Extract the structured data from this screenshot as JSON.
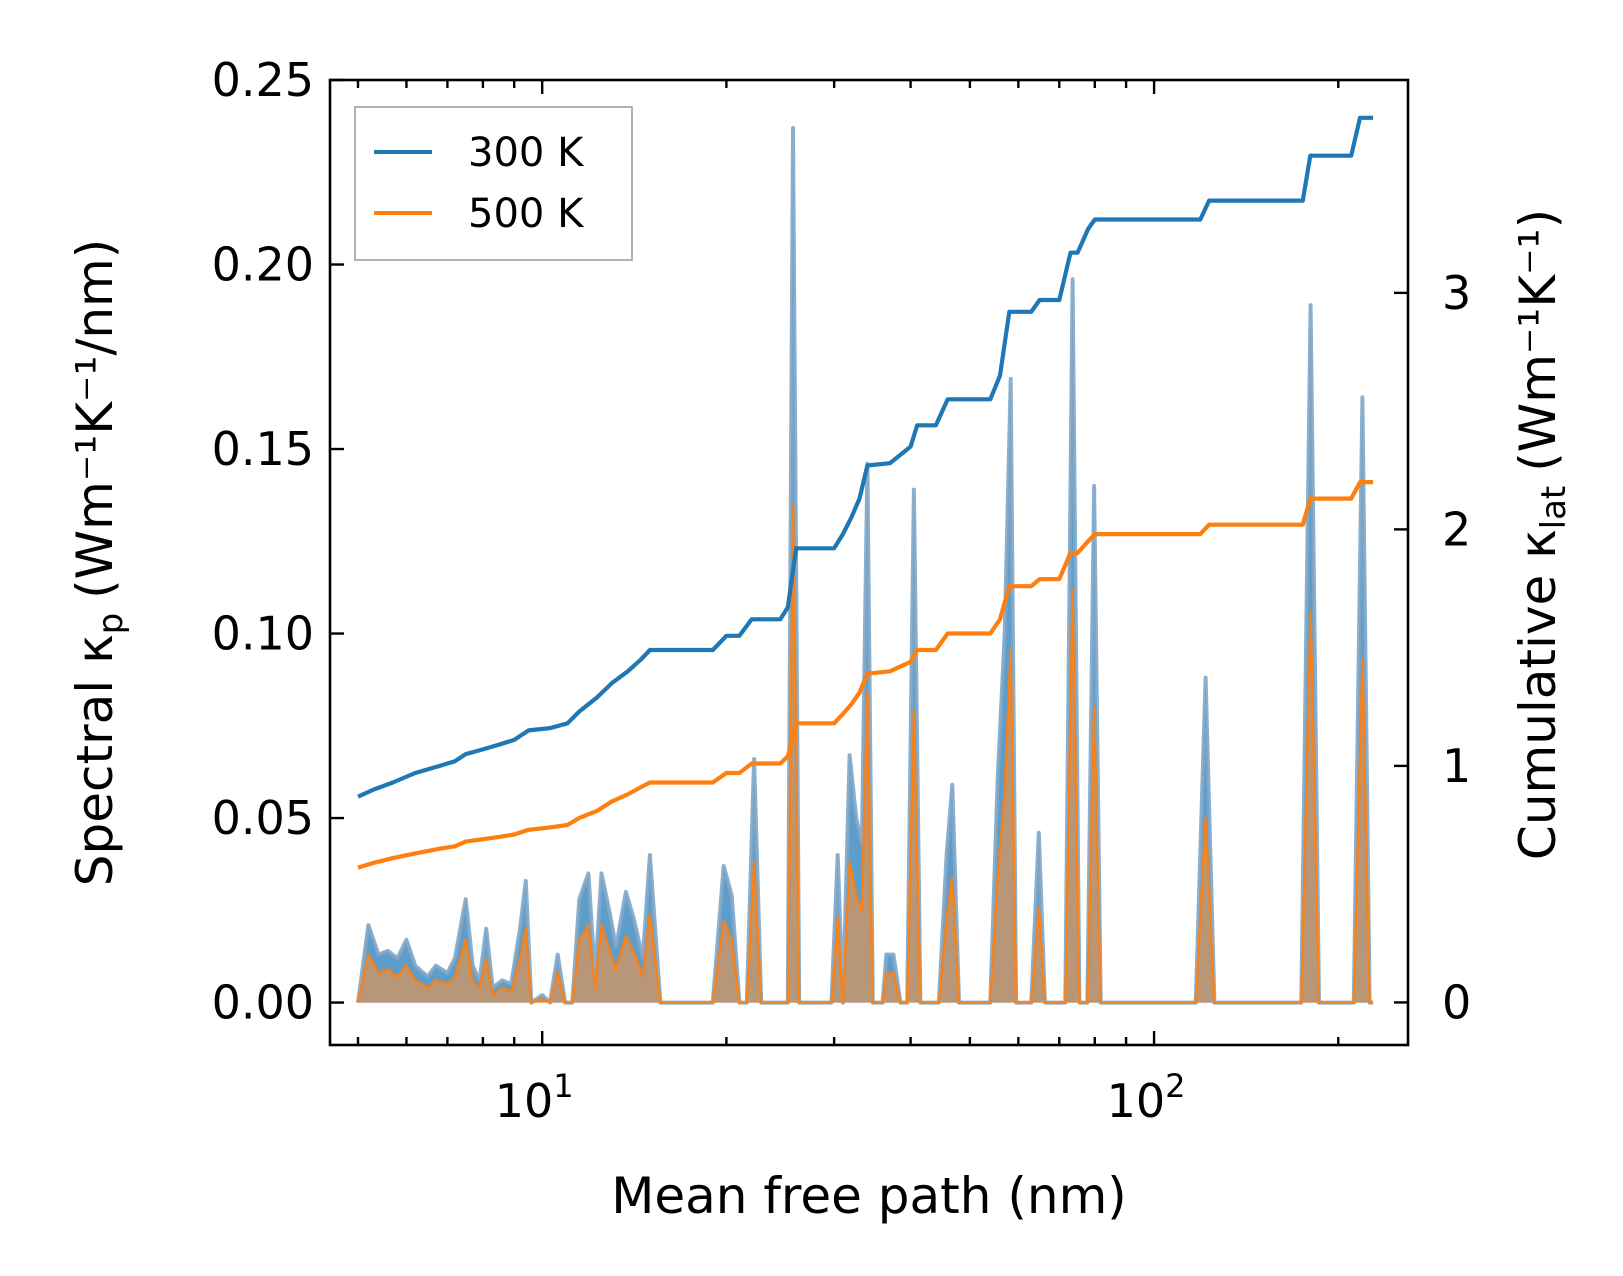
{
  "chart_data": {
    "type": "line",
    "title": "",
    "xlabel": "Mean free path (nm)",
    "ylabel_left": {
      "base": "Spectral κ",
      "sub": "p",
      "unit": "(Wm⁻¹K⁻¹/nm)"
    },
    "ylabel_right": {
      "base": "Cumulative κ",
      "sub": "lat",
      "unit": "(Wm⁻¹K⁻¹)"
    },
    "xscale": "log",
    "xlim": [
      4.5,
      260
    ],
    "ylim_left": [
      -0.0115,
      0.25
    ],
    "ylim_right": [
      -0.18,
      3.9
    ],
    "x_ticks": [
      {
        "value": 10,
        "base": "10",
        "exp": "1"
      },
      {
        "value": 100,
        "base": "10",
        "exp": "2"
      }
    ],
    "y_left_ticks": [
      {
        "value": 0.0,
        "label": "0.00"
      },
      {
        "value": 0.05,
        "label": "0.05"
      },
      {
        "value": 0.1,
        "label": "0.10"
      },
      {
        "value": 0.15,
        "label": "0.15"
      },
      {
        "value": 0.2,
        "label": "0.20"
      },
      {
        "value": 0.25,
        "label": "0.25"
      }
    ],
    "y_right_ticks": [
      {
        "value": 0,
        "label": "0"
      },
      {
        "value": 1,
        "label": "1"
      },
      {
        "value": 2,
        "label": "2"
      },
      {
        "value": 3,
        "label": "3"
      }
    ],
    "legend": {
      "position": "top-left",
      "entries": [
        "300 K",
        "500 K"
      ]
    },
    "series": [
      {
        "name": "300 K",
        "color": "#1f77b4",
        "fill_color": "#1f77b4",
        "cumulative": [
          [
            5.0,
            0.87
          ],
          [
            5.3,
            0.9
          ],
          [
            5.7,
            0.93
          ],
          [
            6.2,
            0.97
          ],
          [
            6.8,
            1.0
          ],
          [
            7.2,
            1.02
          ],
          [
            7.5,
            1.05
          ],
          [
            8.0,
            1.07
          ],
          [
            8.5,
            1.09
          ],
          [
            9.0,
            1.11
          ],
          [
            9.5,
            1.15
          ],
          [
            10.3,
            1.16
          ],
          [
            11.0,
            1.18
          ],
          [
            11.5,
            1.23
          ],
          [
            12.3,
            1.29
          ],
          [
            13.0,
            1.35
          ],
          [
            13.8,
            1.4
          ],
          [
            14.5,
            1.45
          ],
          [
            15.0,
            1.49
          ],
          [
            19.0,
            1.49
          ],
          [
            20.0,
            1.55
          ],
          [
            21.0,
            1.55
          ],
          [
            22.0,
            1.62
          ],
          [
            24.5,
            1.62
          ],
          [
            25.2,
            1.67
          ],
          [
            26.0,
            1.92
          ],
          [
            30.0,
            1.92
          ],
          [
            31.0,
            1.98
          ],
          [
            32.0,
            2.05
          ],
          [
            33.0,
            2.13
          ],
          [
            34.0,
            2.27
          ],
          [
            37.0,
            2.28
          ],
          [
            40.0,
            2.35
          ],
          [
            41.0,
            2.44
          ],
          [
            44.0,
            2.44
          ],
          [
            46.0,
            2.55
          ],
          [
            54.0,
            2.55
          ],
          [
            56.0,
            2.65
          ],
          [
            58.0,
            2.92
          ],
          [
            63.0,
            2.92
          ],
          [
            65.0,
            2.97
          ],
          [
            70.0,
            2.97
          ],
          [
            73.0,
            3.17
          ],
          [
            75.0,
            3.17
          ],
          [
            78.0,
            3.27
          ],
          [
            80.0,
            3.31
          ],
          [
            119.0,
            3.31
          ],
          [
            123.0,
            3.39
          ],
          [
            175.0,
            3.39
          ],
          [
            180.0,
            3.58
          ],
          [
            210.0,
            3.58
          ],
          [
            217.0,
            3.74
          ],
          [
            228.0,
            3.74
          ]
        ],
        "spectral": [
          [
            5.0,
            0.0
          ],
          [
            5.2,
            0.021
          ],
          [
            5.4,
            0.013
          ],
          [
            5.6,
            0.014
          ],
          [
            5.8,
            0.012
          ],
          [
            6.0,
            0.017
          ],
          [
            6.2,
            0.01
          ],
          [
            6.5,
            0.007
          ],
          [
            6.7,
            0.01
          ],
          [
            7.0,
            0.008
          ],
          [
            7.2,
            0.012
          ],
          [
            7.5,
            0.028
          ],
          [
            7.7,
            0.01
          ],
          [
            7.9,
            0.006
          ],
          [
            8.1,
            0.02
          ],
          [
            8.3,
            0.004
          ],
          [
            8.6,
            0.006
          ],
          [
            8.9,
            0.005
          ],
          [
            9.2,
            0.02
          ],
          [
            9.4,
            0.033
          ],
          [
            9.6,
            0.0
          ],
          [
            10.0,
            0.002
          ],
          [
            10.3,
            0.0
          ],
          [
            10.6,
            0.013
          ],
          [
            10.9,
            0.0
          ],
          [
            11.2,
            0.0
          ],
          [
            11.5,
            0.028
          ],
          [
            11.9,
            0.035
          ],
          [
            12.2,
            0.007
          ],
          [
            12.5,
            0.035
          ],
          [
            12.9,
            0.024
          ],
          [
            13.2,
            0.015
          ],
          [
            13.7,
            0.03
          ],
          [
            14.1,
            0.023
          ],
          [
            14.6,
            0.012
          ],
          [
            15.0,
            0.04
          ],
          [
            15.6,
            0.0
          ],
          [
            19.0,
            0.0
          ],
          [
            19.8,
            0.037
          ],
          [
            20.4,
            0.029
          ],
          [
            21.0,
            0.0
          ],
          [
            21.6,
            0.0
          ],
          [
            22.2,
            0.066
          ],
          [
            22.8,
            0.0
          ],
          [
            24.5,
            0.0
          ],
          [
            25.2,
            0.0
          ],
          [
            25.7,
            0.237
          ],
          [
            26.3,
            0.0
          ],
          [
            29.7,
            0.0
          ],
          [
            30.4,
            0.04
          ],
          [
            31.0,
            0.0
          ],
          [
            31.8,
            0.067
          ],
          [
            32.6,
            0.05
          ],
          [
            33.3,
            0.043
          ],
          [
            34.0,
            0.146
          ],
          [
            34.7,
            0.0
          ],
          [
            36.0,
            0.0
          ],
          [
            36.5,
            0.013
          ],
          [
            37.5,
            0.013
          ],
          [
            38.5,
            0.0
          ],
          [
            39.5,
            0.0
          ],
          [
            40.5,
            0.139
          ],
          [
            41.5,
            0.0
          ],
          [
            44.5,
            0.0
          ],
          [
            45.8,
            0.04
          ],
          [
            46.8,
            0.059
          ],
          [
            48.0,
            0.0
          ],
          [
            54.0,
            0.0
          ],
          [
            55.5,
            0.06
          ],
          [
            57.0,
            0.1
          ],
          [
            58.3,
            0.169
          ],
          [
            59.5,
            0.0
          ],
          [
            63.0,
            0.0
          ],
          [
            64.8,
            0.046
          ],
          [
            66.3,
            0.0
          ],
          [
            70.0,
            0.0
          ],
          [
            71.6,
            0.0
          ],
          [
            73.6,
            0.196
          ],
          [
            75.5,
            0.0
          ],
          [
            77.8,
            0.0
          ],
          [
            79.8,
            0.14
          ],
          [
            81.8,
            0.0
          ],
          [
            117.0,
            0.0
          ],
          [
            121.4,
            0.088
          ],
          [
            125.5,
            0.0
          ],
          [
            170.0,
            0.0
          ],
          [
            174.0,
            0.0
          ],
          [
            180.2,
            0.189
          ],
          [
            186.0,
            0.0
          ],
          [
            208.0,
            0.0
          ],
          [
            212.0,
            0.0
          ],
          [
            219.0,
            0.164
          ],
          [
            225.0,
            0.0
          ],
          [
            228.0,
            0.0
          ]
        ]
      },
      {
        "name": "500 K",
        "color": "#ff7f0e",
        "fill_color": "#c8956a",
        "cumulative": [
          [
            5.0,
            0.57
          ],
          [
            5.3,
            0.59
          ],
          [
            5.7,
            0.61
          ],
          [
            6.2,
            0.63
          ],
          [
            6.8,
            0.65
          ],
          [
            7.2,
            0.66
          ],
          [
            7.5,
            0.68
          ],
          [
            8.0,
            0.69
          ],
          [
            8.5,
            0.7
          ],
          [
            9.0,
            0.71
          ],
          [
            9.5,
            0.73
          ],
          [
            10.3,
            0.74
          ],
          [
            11.0,
            0.75
          ],
          [
            11.5,
            0.78
          ],
          [
            12.3,
            0.81
          ],
          [
            13.0,
            0.85
          ],
          [
            13.8,
            0.88
          ],
          [
            14.5,
            0.91
          ],
          [
            15.0,
            0.93
          ],
          [
            19.0,
            0.93
          ],
          [
            20.0,
            0.97
          ],
          [
            21.0,
            0.97
          ],
          [
            22.0,
            1.01
          ],
          [
            24.5,
            1.01
          ],
          [
            25.2,
            1.04
          ],
          [
            26.0,
            1.18
          ],
          [
            30.0,
            1.18
          ],
          [
            31.0,
            1.22
          ],
          [
            32.0,
            1.26
          ],
          [
            33.0,
            1.31
          ],
          [
            34.0,
            1.39
          ],
          [
            37.0,
            1.4
          ],
          [
            40.0,
            1.44
          ],
          [
            41.0,
            1.49
          ],
          [
            44.0,
            1.49
          ],
          [
            46.0,
            1.56
          ],
          [
            54.0,
            1.56
          ],
          [
            56.0,
            1.62
          ],
          [
            58.0,
            1.76
          ],
          [
            63.0,
            1.76
          ],
          [
            65.0,
            1.79
          ],
          [
            70.0,
            1.79
          ],
          [
            73.0,
            1.9
          ],
          [
            75.0,
            1.9
          ],
          [
            78.0,
            1.95
          ],
          [
            80.0,
            1.98
          ],
          [
            119.0,
            1.98
          ],
          [
            123.0,
            2.02
          ],
          [
            175.0,
            2.02
          ],
          [
            180.0,
            2.13
          ],
          [
            210.0,
            2.13
          ],
          [
            217.0,
            2.2
          ],
          [
            228.0,
            2.2
          ]
        ],
        "spectral": [
          [
            5.0,
            0.0
          ],
          [
            5.2,
            0.013
          ],
          [
            5.4,
            0.008
          ],
          [
            5.6,
            0.009
          ],
          [
            5.8,
            0.007
          ],
          [
            6.0,
            0.01
          ],
          [
            6.2,
            0.006
          ],
          [
            6.5,
            0.004
          ],
          [
            6.7,
            0.006
          ],
          [
            7.0,
            0.005
          ],
          [
            7.2,
            0.007
          ],
          [
            7.5,
            0.017
          ],
          [
            7.7,
            0.006
          ],
          [
            7.9,
            0.004
          ],
          [
            8.1,
            0.012
          ],
          [
            8.3,
            0.002
          ],
          [
            8.6,
            0.004
          ],
          [
            8.9,
            0.003
          ],
          [
            9.2,
            0.012
          ],
          [
            9.4,
            0.02
          ],
          [
            9.6,
            0.0
          ],
          [
            10.0,
            0.001
          ],
          [
            10.3,
            0.0
          ],
          [
            10.6,
            0.008
          ],
          [
            10.9,
            0.0
          ],
          [
            11.2,
            0.0
          ],
          [
            11.5,
            0.017
          ],
          [
            11.9,
            0.021
          ],
          [
            12.2,
            0.004
          ],
          [
            12.5,
            0.021
          ],
          [
            12.9,
            0.014
          ],
          [
            13.2,
            0.009
          ],
          [
            13.7,
            0.018
          ],
          [
            14.1,
            0.014
          ],
          [
            14.6,
            0.007
          ],
          [
            15.0,
            0.024
          ],
          [
            15.6,
            0.0
          ],
          [
            19.0,
            0.0
          ],
          [
            19.8,
            0.022
          ],
          [
            20.4,
            0.017
          ],
          [
            21.0,
            0.0
          ],
          [
            21.6,
            0.0
          ],
          [
            22.2,
            0.038
          ],
          [
            22.8,
            0.0
          ],
          [
            24.5,
            0.0
          ],
          [
            25.2,
            0.0
          ],
          [
            25.7,
            0.135
          ],
          [
            26.3,
            0.0
          ],
          [
            29.7,
            0.0
          ],
          [
            30.4,
            0.023
          ],
          [
            31.0,
            0.0
          ],
          [
            31.8,
            0.038
          ],
          [
            32.6,
            0.029
          ],
          [
            33.3,
            0.025
          ],
          [
            34.0,
            0.084
          ],
          [
            34.7,
            0.0
          ],
          [
            36.0,
            0.0
          ],
          [
            36.5,
            0.008
          ],
          [
            37.5,
            0.008
          ],
          [
            38.5,
            0.0
          ],
          [
            39.5,
            0.0
          ],
          [
            40.5,
            0.079
          ],
          [
            41.5,
            0.0
          ],
          [
            44.5,
            0.0
          ],
          [
            45.8,
            0.023
          ],
          [
            46.8,
            0.034
          ],
          [
            48.0,
            0.0
          ],
          [
            54.0,
            0.0
          ],
          [
            55.5,
            0.034
          ],
          [
            57.0,
            0.057
          ],
          [
            58.3,
            0.096
          ],
          [
            59.5,
            0.0
          ],
          [
            63.0,
            0.0
          ],
          [
            64.8,
            0.026
          ],
          [
            66.3,
            0.0
          ],
          [
            70.0,
            0.0
          ],
          [
            71.6,
            0.0
          ],
          [
            73.6,
            0.112
          ],
          [
            75.5,
            0.0
          ],
          [
            77.8,
            0.0
          ],
          [
            79.8,
            0.08
          ],
          [
            81.8,
            0.0
          ],
          [
            117.0,
            0.0
          ],
          [
            121.4,
            0.05
          ],
          [
            125.5,
            0.0
          ],
          [
            170.0,
            0.0
          ],
          [
            174.0,
            0.0
          ],
          [
            180.2,
            0.106
          ],
          [
            186.0,
            0.0
          ],
          [
            208.0,
            0.0
          ],
          [
            212.0,
            0.0
          ],
          [
            219.0,
            0.093
          ],
          [
            225.0,
            0.0
          ],
          [
            228.0,
            0.0
          ]
        ]
      }
    ]
  }
}
